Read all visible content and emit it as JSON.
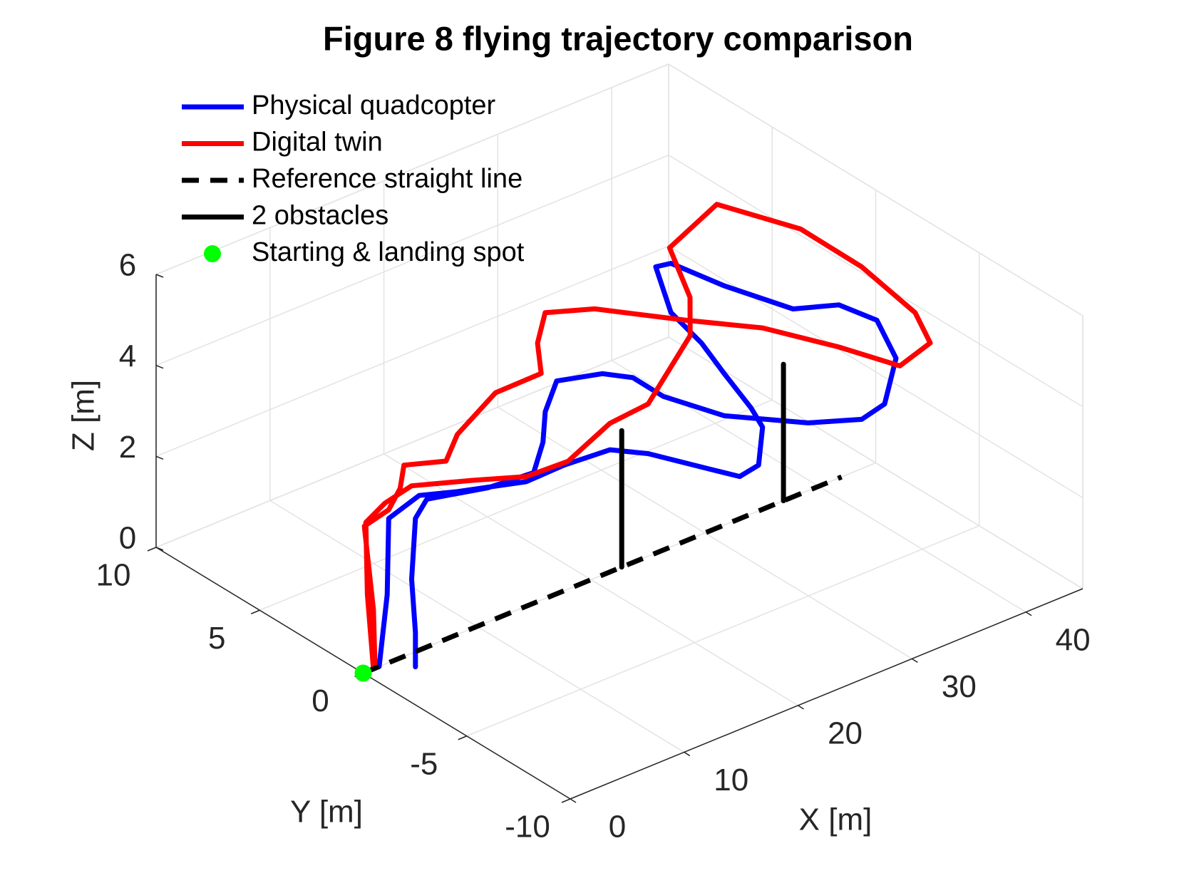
{
  "chart_data": {
    "type": "line3d",
    "title": "Figure 8 flying trajectory comparison",
    "xlabel": "X [m]",
    "ylabel": "Y [m]",
    "zlabel": "Z [m]",
    "xlim": [
      0,
      45
    ],
    "xticks": [
      0,
      10,
      20,
      30,
      40
    ],
    "ylim": [
      -10,
      10
    ],
    "yticks": [
      -10,
      -5,
      0,
      5,
      10
    ],
    "zlim": [
      0,
      6
    ],
    "zticks": [
      0,
      2,
      4,
      6
    ],
    "grid": true,
    "legend": "upper left",
    "series": [
      {
        "name": "Physical quadcopter",
        "color": "#0000ff",
        "style": "solid",
        "x": [
          1.4,
          2.11,
          2.24,
          4.92,
          8.27,
          14.3,
          17.65,
          23.49,
          28.65,
          30.37,
          31.24,
          32.9,
          33.25,
          34.06,
          33.53,
          33.34,
          32.48,
          32.96,
          34.3,
          35.35,
          37.74,
          39.94,
          41.47,
          39.51,
          36.69,
          34.68,
          31.8,
          26.26,
          24.53,
          25.5,
          24.64,
          20.62,
          17.8,
          17.6,
          14.97,
          10.95,
          5.59,
          4.59,
          2.44,
          2.77,
          2.77
        ],
        "y": [
          0,
          0,
          0,
          0,
          0,
          0,
          0,
          1,
          2,
          0,
          -1,
          -1,
          -1,
          0,
          1,
          2,
          3,
          4,
          4,
          2,
          0,
          -1,
          -2,
          -4,
          -5,
          -5,
          -4,
          -3,
          -1,
          1,
          2,
          2,
          1,
          1,
          0,
          0,
          0,
          0,
          -1,
          -1,
          -1
        ],
        "z": [
          0,
          1.51,
          3.17,
          3.4,
          3.14,
          2.74,
          2.76,
          2.22,
          1.33,
          1.37,
          1.39,
          1.47,
          2.27,
          2.33,
          2.86,
          3.28,
          3.76,
          4.44,
          4.38,
          4.33,
          4.13,
          4.27,
          4.05,
          3.97,
          3.53,
          3.4,
          3.34,
          3.79,
          3.84,
          3.6,
          3.5,
          3.75,
          3.64,
          2.99,
          2.87,
          2.95,
          3.25,
          2.93,
          2.09,
          0.88,
          0.13
        ]
      },
      {
        "name": "Digital twin",
        "color": "#ff0000",
        "style": "solid",
        "x": [
          0.9,
          0.37,
          0.23,
          1.91,
          4.25,
          9.61,
          14.3,
          17.98,
          25.3,
          28.65,
          30.3,
          34.16,
          35.97,
          35.99,
          40.14,
          42.05,
          41.95,
          41.19,
          40.7,
          38.03,
          36.3,
          33.25,
          30.18,
          25.78,
          23.25,
          22.58,
          22.9,
          17.07,
          11.9,
          9.09,
          5.4,
          3.25,
          2.24,
          0.1,
          0.9,
          1.04
        ],
        "y": [
          0,
          0,
          0,
          0,
          0,
          0,
          0,
          0,
          2,
          2,
          2,
          3,
          4,
          5,
          5,
          2,
          -1,
          -4,
          -5,
          -5,
          -3,
          -1,
          1,
          3,
          4,
          4,
          4,
          3,
          2,
          1,
          1,
          0,
          0,
          0,
          0,
          0
        ],
        "z": [
          0,
          1.69,
          3.29,
          3.54,
          3.68,
          3.25,
          2.85,
          2.81,
          2.34,
          2.42,
          2.92,
          3.08,
          3.46,
          4.27,
          4.8,
          4.89,
          4.9,
          4.8,
          4.46,
          4.23,
          4.27,
          4.45,
          4.38,
          4.53,
          4.43,
          3.83,
          3.13,
          3.58,
          3.47,
          3.45,
          3.74,
          3.73,
          3.36,
          3.22,
          1.3,
          0.03
        ]
      },
      {
        "name": "Reference straight line",
        "color": "#000000",
        "style": "dashed",
        "x": [
          0,
          42
        ],
        "y": [
          0,
          0
        ],
        "z": [
          0,
          0
        ]
      },
      {
        "name": "2 obstacles",
        "color": "#000000",
        "style": "solid",
        "x": [
          22.7,
          22.7,
          null,
          36.9,
          36.9
        ],
        "y": [
          0,
          0,
          null,
          0,
          0
        ],
        "z": [
          0,
          3,
          null,
          0,
          3
        ]
      },
      {
        "name": "Starting & landing spot",
        "color": "#00ff00",
        "marker": "circle",
        "x": [
          0
        ],
        "y": [
          0
        ],
        "z": [
          0
        ]
      }
    ]
  }
}
